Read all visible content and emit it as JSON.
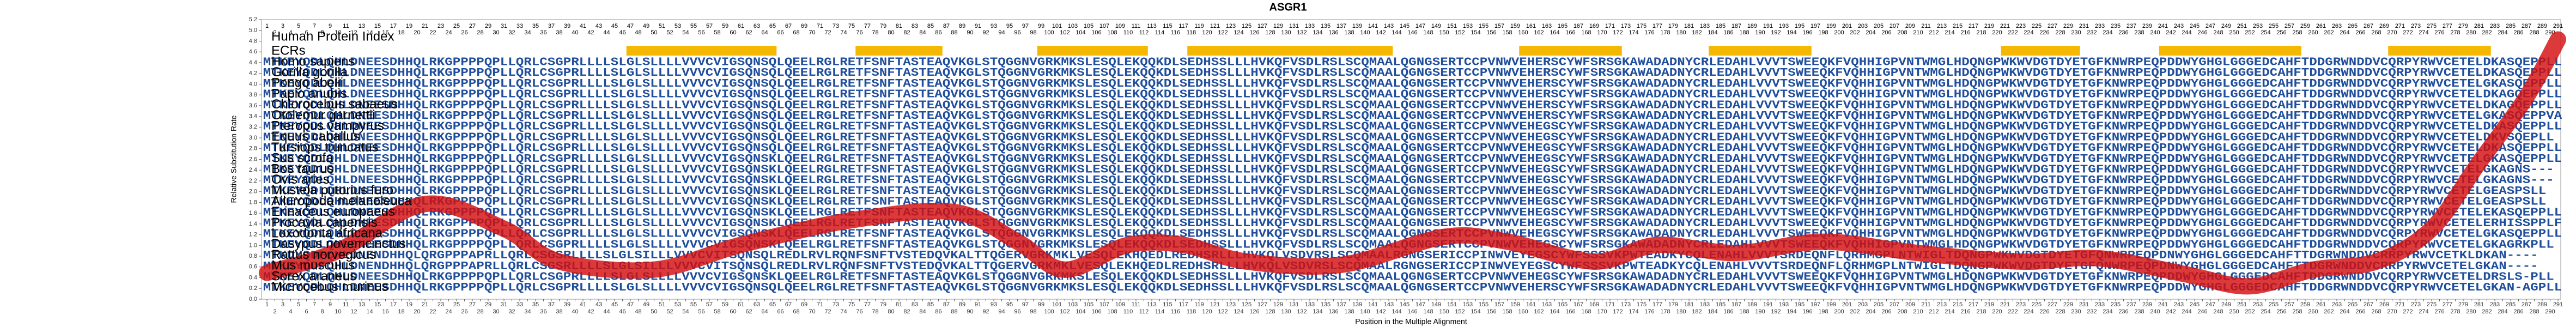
{
  "chart_data": {
    "type": "alignment-line",
    "title": "ASGR1",
    "ylabel": "Relative Substitution Rate",
    "xlabel": "Position in the Multiple Alignment",
    "index_label": "Human Protein Index",
    "ecr_label": "ECRs",
    "ecr_color": "#f5b800",
    "line_color": "#d40f0f",
    "seq_color": "#1f4e9c",
    "xlim": [
      1,
      291
    ],
    "ylim": [
      0,
      5.2
    ],
    "yticks": [
      {
        "value": 0,
        "label": "0.0"
      },
      {
        "value": 0.2,
        "label": "0.2"
      },
      {
        "value": 0.4,
        "label": "0.4"
      },
      {
        "value": 0.6,
        "label": "0.6"
      },
      {
        "value": 0.8,
        "label": "0.8"
      },
      {
        "value": 1,
        "label": "1.0"
      },
      {
        "value": 1.2,
        "label": "1.2"
      },
      {
        "value": 1.4,
        "label": "1.4"
      },
      {
        "value": 1.6,
        "label": "1.6"
      },
      {
        "value": 1.8,
        "label": "1.8"
      },
      {
        "value": 2,
        "label": "2.0"
      },
      {
        "value": 2.2,
        "label": "2.2"
      },
      {
        "value": 2.4,
        "label": "2.4"
      },
      {
        "value": 2.6,
        "label": "2.6"
      },
      {
        "value": 2.8,
        "label": "2.8"
      },
      {
        "value": 3,
        "label": "3.0"
      },
      {
        "value": 3.2,
        "label": "3.2"
      },
      {
        "value": 3.4,
        "label": "3.4"
      },
      {
        "value": 3.6,
        "label": "3.6"
      },
      {
        "value": 3.8,
        "label": "3.8"
      },
      {
        "value": 4,
        "label": "4.0"
      },
      {
        "value": 4.2,
        "label": "4.2"
      },
      {
        "value": 4.4,
        "label": "4.4"
      },
      {
        "value": 4.6,
        "label": "4.6"
      },
      {
        "value": 4.8,
        "label": "4.8"
      },
      {
        "value": 5,
        "label": "5.0"
      },
      {
        "value": 5.2,
        "label": "5.2"
      }
    ],
    "xticks": [
      1,
      2,
      3,
      4,
      5,
      6,
      7,
      8,
      9,
      10,
      11,
      12,
      13,
      14,
      15,
      16,
      17,
      18,
      19,
      20,
      21,
      22,
      23,
      24,
      25,
      26,
      27,
      28,
      29,
      30,
      31,
      32,
      33,
      34,
      35,
      36,
      37,
      38,
      39,
      40,
      41,
      42,
      43,
      44,
      45,
      46,
      47,
      48,
      49,
      50,
      51,
      52,
      53,
      54,
      55,
      56,
      57,
      58,
      59,
      60,
      61,
      62,
      63,
      64,
      65,
      66,
      67,
      68,
      69,
      70,
      71,
      72,
      73,
      74,
      75,
      76,
      77,
      78,
      79,
      80,
      81,
      82,
      83,
      84,
      85,
      86,
      87,
      88,
      89,
      90,
      91,
      92,
      93,
      94,
      95,
      96,
      97,
      98,
      99,
      100,
      101,
      102,
      103,
      104,
      105,
      106,
      107,
      108,
      109,
      110,
      111,
      112,
      113,
      114,
      115,
      116,
      117,
      118,
      119,
      120,
      121,
      122,
      123,
      124,
      125,
      126,
      127,
      128,
      129,
      130,
      131,
      132,
      133,
      134,
      135,
      136,
      137,
      138,
      139,
      140,
      141,
      142,
      143,
      144,
      145,
      146,
      147,
      148,
      149,
      150,
      151,
      152,
      153,
      154,
      155,
      156,
      157,
      158,
      159,
      160,
      161,
      162,
      163,
      164,
      165,
      166,
      167,
      168,
      169,
      170,
      171,
      172,
      173,
      174,
      175,
      176,
      177,
      178,
      179,
      180,
      181,
      182,
      183,
      184,
      185,
      186,
      187,
      188,
      189,
      190,
      191,
      192,
      193,
      194,
      195,
      196,
      197,
      198,
      199,
      200,
      201,
      202,
      203,
      204,
      205,
      206,
      207,
      208,
      209,
      210,
      211,
      212,
      213,
      214,
      215,
      216,
      217,
      218,
      219,
      220,
      221,
      222,
      223,
      224,
      225,
      226,
      227,
      228,
      229,
      230,
      231,
      232,
      233,
      234,
      235,
      236,
      237,
      238,
      239,
      240,
      241,
      242,
      243,
      244,
      245,
      246,
      247,
      248,
      249,
      250,
      251,
      252,
      253,
      254,
      255,
      256,
      257,
      258,
      259,
      260,
      261,
      262,
      263,
      264,
      265,
      266,
      267,
      268,
      269,
      270,
      271,
      272,
      273,
      274,
      275,
      276,
      277,
      278,
      279,
      280,
      281,
      282,
      283,
      284,
      285,
      286,
      287,
      288,
      289,
      290,
      291
    ],
    "ecrs": [
      [
        47,
        65
      ],
      [
        76,
        86
      ],
      [
        99,
        112
      ],
      [
        118,
        143
      ],
      [
        160,
        172
      ],
      [
        184,
        196
      ],
      [
        221,
        230
      ],
      [
        241,
        258
      ],
      [
        270,
        282
      ]
    ],
    "x": [
      1,
      10,
      21,
      31,
      38,
      50,
      61,
      75,
      88,
      96,
      102,
      110,
      117,
      125,
      137,
      150,
      158,
      169,
      177,
      187,
      198,
      210,
      223,
      233,
      244,
      252,
      260,
      268,
      275,
      281,
      287,
      291
    ],
    "values": [
      0.49,
      0.9,
      1.77,
      1.31,
      0.7,
      0.55,
      1.01,
      1.47,
      1.62,
      1.07,
      0.55,
      1.01,
      1.01,
      0.7,
      0.64,
      1.16,
      1.07,
      0.7,
      1.01,
      0.86,
      1.07,
      0.86,
      0.7,
      0.76,
      0.46,
      0.24,
      0.55,
      0.7,
      1.31,
      2.54,
      3.76,
      4.83
    ],
    "species": [
      {
        "name": "Homo sapiens",
        "seq": "MTKEYQDLQHLDNEESDHHQLRKGPPPPQPLLQRLCSGPRLLLLSLGLSLLLLVVVCVIGSQNSQLQEELRGLRETFSNFTASTEAQVKGLSTQGGNVGRKMKSLESQLEKQQKDLSEDHSSLLLHVKQFVSDLRSLSCQMAALQGNGSERTCCPVNWVEHERSCYWFSRSGKAWADADNYCRLEDAHLVVVTSWEEQKFVQHHIGPVNTWMGLHDQNGPWKWVDGTDYETGFKNWRPEQPDDWYGHGLGGGEDCAHFTDDGRWNDDVCQRPYRWVCETELDKASQEPPLL"
      },
      {
        "name": "Gorilla gorilla",
        "seq": "MTKEYQDLQHLDNEESDHHQLRKGPPPPQPLLQRLCSGPRLLLLSLGLSLLLLVVVCVIGSQNSQLQEELRGLRETFSNFTASTEAQVKGLSTQGGNVGRKMKSLESQLEKQQKDLSEDHSSLLLHVKQFVSDLRSLSCQMAALQGNGSERTCCPVNWVEHERSCYWFSRSGKAWADADNYCRLEDAHLVVVTSWEEQKFVQHHIGPVNTWMGLHDQNGPWKWVDGTDYETGFKNWRPEQPDDWYGHGLGGGEDCAHFTDDGRWNDDVCQRPYRWVCETELDKASQEPPLL"
      },
      {
        "name": "Pongo abelii",
        "seq": "MTKEYQDLQHLDNEESDHHQLRKGPPPPQPLLQRLCSGPRLLLLSLGLSLLLLVVVCVIGSQNSQLQEELRGLRETFSNFTASTEAQVKGLSTQGGNVGRKMKSLESQLEKQQKDLSEDHSSLLLHVKQFVSDLRSLSCQMAALQGNGSERTCCPVNWVEHERSCYWFSRSGKAWADADNYCRLEDAHLVVVTSWEEQKFVQHHIGPVNTWMGLHDQNGPWKWVDGTDYETGFKNWRPEQPDDWYGHGLGGGEDCAHFTDDGRWNDDVCQRPYRWVCETELGKASQEPPLL"
      },
      {
        "name": "Papio anubis",
        "seq": "MTKEYQDLQHLDNEESDHHQLRKGPPPPQPLLQRLCSGPRLLLLSLGLSLLLLVVVCVIGSQNSQLQEELRGLRETFSNFTASTEAQVKGLSTQGGNVGRKMKSLESQLEKQQKDLSEDHSSLLLHVKQFVSDLRSLSCQMAALQGNGSERTCCPVNWVEHERSCYWFSRSGKAWADADNYCRLEDAHLVVVTSWEEQKFVQHHIGPVNTWMGLHDQNGPWKWVDGTDYETGFKNWRPEQPDDWYGHGLGGGEDCAHFTDDGRWNDDVCQRPYRWVCETELDKAGQEPPLL"
      },
      {
        "name": "Chlorocebus sabaeus",
        "seq": "MTKEYQDLQHLDNEESDHHQLRKGPPPPQPLLQRLCSGPRLLLLSLGLSLLLLVVVCVIGSQNSQLQEELRGLRETFSNFTASTEAQVKGLSTQGGNVGRKMKSLESQLEKQQKDLSEDHSSLLLHVKQFVSDLRSLSCQMAALQGNGSERTCCPVNWVEHERSCYWFSRSGKAWADADNYCRLEDAHLVVVTSWEEQKFVQHHIGPVNTWMGLHDQNGPWKWVDGTDYETGFKNWRPEQPDDWYGHGLGGGEDCAHFTDDGRWNDDVCQRPYRWVCETELDKAGQEPPLL"
      },
      {
        "name": "Otolemur garnettii",
        "seq": "MTKEYQDLQHLDNEESDHHQLRKGPPPPQPLLQRLCSGPRLLLLSLGLSLLLLVVVCVIGSQNSQLQEELRGLRETFSNFTASTEAQVKGLSTQGGNVGRKMKSLESQLEKQQKDLSEDHSSLLLHVKQFVSDLRSLSCQMAALQGNGSERTCCPVNWVEHERSCYWFSRSGKAWADADNYCRLEDAHLVVVTSWEEQKFVQHHIGPVNTWMGLHDQNGPWKWVDGTDYETGFKNWRPEQPDDWYGHGLGGGEDCAHFTDDGRWNDDVCQRPYRWVCETELGKASQEPPVA"
      },
      {
        "name": "Pteropus vampyrus",
        "seq": "MTKEYQDLQHLDNEESDHHQLRKGPPPPQPLLQRLCSGPRLLLLSLGLSLLLLVVVCVIGSQNSQLQEELRGLRETFSNFTASTEAQVKGLSTQGGNVGRKMKSLESQLEKQQKDLSEDHSSLLLHVKQFVSDLRSLSCQMAALQGNGSERTCCPVNWVEHEGSCYWFSRSGKAWADADNYCRLEDAHLVVVTSWEEQKFVQHHIGPVNTWMGLHDQNGPWKWVDGTDYETGFKNWRPEQPDDWYGHGLGGGEDCAHFTDDGRWNDDVCQRPYRWVCETELDKASQEPPLL"
      },
      {
        "name": "Equus caballus",
        "seq": "MTKEYQDLQHLDNEESDHHQLRKGPPPPQPLLQRLCSGPRLLLLSLGLSLLLLVVVCVIGSQNSQLQEELRGLRETFSNFTASTEAQVKGLSTQGGNVGRKMKSLESQLEKQQKDLSEDHSSLLLHVKQFVSDLRSLSCQMAALQGNGSERTCCPVNWVEHEGSCYWFSRSGKAWADADNYCRLEDAHLVVVTSWEEQKFVQHHIGPVNTWMGLHDQNGPWKWVDGTDYETGFKNWRPEQPDDWYGHGLGGGEDCAHFTDDGRWNDDVCQRPYRWVCETELDKVSQEPLL"
      },
      {
        "name": "Tursiops truncatus",
        "seq": "MTKEYQDLQHLDNEESDHHQLRKGPPPPQPLLQRLCSGPRLLLLSLGLSLLLLVVVCVIGSQNSQLQEELRGLRETFSNFTASTEAQVKGLSTQGGNVGRKMKSLESQLEKQQKDLSEDHSSLLLHVKQFVSDLRSLSCQMAALQGNGSERTCCPVNWVEHEGSCYWFSRSGKAWADADNYCRLEDAHLVVVTSWEEQKFVQHHIGPVNTWMGLHDQNGPWKWVDGTDYETGFKNWRPEQPDDWYGHGLGGGEDCAHFTDDGRWNDDVCQRPYRWVCETELDKASQEPPLL"
      },
      {
        "name": "Sus scrofa",
        "seq": "MTKEYQDLQHLDNEESDHHQLRKGPPPPQPLLQRLCSGPRLLLLSLGLSLLLLVVVCVIGSQNSKLQEELRGLRETFSNFTASTEAQVKGLSTQGGNVGRKMKSLESQLEKQQKDLSEDHSSLLLHVKQFVSDLRSLSCQMAALQGNGSERTCCPVNWVEHEGSCYWFSRSGKAWADADNYCRLEDAHLVVVTSWEEQKFVQHHIGPVNTWMGLHDQNGPWKWVDGTDYETGFKNWRPEQPDDWYGHGLGGGEDCAHFTDDGRWNDDVCQRPYRWVCETELGKASQEPPLL"
      },
      {
        "name": "Bos taurus",
        "seq": "MTKEYQDLQHLDNEESDHHQLRKGPPPPQPLLQRLCSGPRLLLLSLGLSLLLLVVVCVIGSQNSKLQEELRGLRETFSNFTASTEAQVKGLSTQGGNVGRKMKSLESQLEKQQKDLSEDHSSLLLHVKQFVSDLRSLSCQMAALQGNGSERTCCPVNWVEHEGSCYWFSRSGKAWADADNYCRLEDAHLVVVTSWEEQKFVQHHIGPVNTWMGLHDQNGPWKWVDGTDYETGFKNWRPEQPDDWYGHGLGGGEDCAHFTDDGRWNDDVCQRPYRWVCETELGKAGNS---"
      },
      {
        "name": "Ovis aries",
        "seq": "MTKEYQDLQHLDNEESDHHQLRKGPPPPQPLLQRLCSGPRLLLLSLGLSLLLLVVVCVIGSQNSKLQEELRGLRETFSNFTASTEAQVKGLSTQGGNVGRKMKSLESQLEKQQKDLSEDHSSLLLHVKQFVSDLRSLSCQMAALQGNGSERTCCPVNWVEHEGSCYWFSRSGKAWADADNYCRLEDAHLVVVTSWEEQKFVQHHIGPVNTWMGLHDQNGPWKWVDGTDYETGFKNWRPEQPDDWYGHGLGGGEDCAHFTDDGRWNDDVCQRPYRWVCETELGKAGNS---"
      },
      {
        "name": "Mustela putorius furo",
        "seq": "MTKEYQDLQHLDNEESDHHQLRKGPPPPQPLLQRLCSGPRLLLLSLGLSLLLLVVVCVIGSQNSKLQEELRGLRETFSNFTASTEAQVKGLSTQGGNVGRKMKSLESQLEKQQKDLSEDHSSLLLHVKQFVSDLRSLSCQMAALQGNGSERTCCPVNWVEHEGSCYWFSRSGKAWADADNYCRLEDAHLVVVTSWEEQKFVQHHIGPVNTWMGLHDQNGPWKWVDGTDYETGFKNWRPEQPDDWYGHGLGGGEDCAHFTDDGRWNDDVCQRPYRWVCETELGEASPSLL"
      },
      {
        "name": "Ailuropoda melanoleuca",
        "seq": "MTKEYQDLQHLDNEESDHHQLRKGPPPPQPLLQRLCSGPRLLLLSLGLSLLLLVVVCVIGSQNSKLQEELRGLRETFSNFTASTEAQVKGLSTQGGNVGRKMKSLESQLEKQQKDLSEDHSSLLLHVKQFVSDLRSLSCQMAALQGNGSERTCCPVNWVEHEGSCYWFSRSGKAWADADNYCRLEDAHLVVVTSWEEQKFVQHHIGPVNTWMGLHDQNGPWKWVDGTDYETGFKNWRPEQPDDWYGHGLGGGEDCAHFTDDGRWNDDVCQRPYRWVCETELGEASPSLL"
      },
      {
        "name": "Erinaceus europaeus",
        "seq": "MTKEYQDLQHLDNEESDHHQLRKGPPPPQPLLQRLCSGPRLLLLSLGLSLLLLVVVCVIGSQNSKLQEELRGLRETFSNFTASTEAQVKGLSTQGGNVGRKMKSLESQLEKQQKDLSEDHSSLLLHVKQFVSDLRSLSCQMAALQGNGSERTCCPVNWVEHEGSCYWFSRSGKAWADADNYCRLEDAHLVVVTSWEEQKFVQHHIGPVNTWMGLHDQNGPWKWVDGTDYETGFKNWRPEQPDDWYGHGLGGGEDCAHFTDDGRWNDDVCQRPYRWVCETELEKASQEPPLL"
      },
      {
        "name": "Procavia capensis",
        "seq": "MTKEYQDLQHLDNEESDHHQLRKGPPPPQPLLQRLCSGPRLLLLSLGLSLLLLVVVCVIGSQNSKLQEELRGLRETFSNFTASTEAQVKGLSTQGGNVGRKMKSLESQLEKQQKDLSEDHSSLLLHVKQFVSDLRSLSCQMAALQGNGSERTCCPVNWVEHEGSCYWFSRSGKAWADADNYCRLEDAHLVVVTSWEEQKFVQHHIGPVNTWMGLHDQNGPWKWVDGTDYETGFKNWRPEQPDDWYGHGLGGGEDCAHFTDDGRWNDDVCQRPYRWVCETELERHISSPPLF"
      },
      {
        "name": "Loxodonta africana",
        "seq": "MTKEYQDLQHLDNEESDHHQLRKGPPPPQPLLQRLCSGPRLLLLSLGLSLLLLVVVCVIGSQNSKLQEELRGLRETFSNFTASTEAQVKGLSTQGGNVGRKMKSLESQLEKQQKDLSEDHSSLLLHVKQFVSDLRSLSCQMAALQGNGSERTCCPVNWVEHEGSCYWFSRSGKAWADADNYCRLEDAHLVVVTSWEEQKFVQHHIGPVNTWMGLHDQNGPWKWVDGTDYETGFKNWRPEQPDDWYGHGLGGGEDCAHFTDDGRWNDDVCQRPYRWVCETELGKASQEPPLL"
      },
      {
        "name": "Dasypus novemcinctus",
        "seq": "MTKEYQDLQHLDNEESDHHQLRKGPPPPQPLLQRLCSGPRLLLLSLGLSLLLLVVVCVIGSQNSKLQEELRGLRETFSNFTASTEAQVKGLSTQGGNVGRKMKSLESQLEKQQKDLSEDHSSLLLHVKQFVSDLRSLSCQMAALQGNGSERTCCPVNWVEHEGSCYWFSRSGKAWADADNYCRLEDAHLVVVTSWEEQKFVQHHIGPVNTWMGLHDQNGPWKWVDGTDYETGFKNWRPEQPDDWYGHGLGGGEDCAHFTDDGRWNDDVCQRPYRWVCETELGKAGRKPLL"
      },
      {
        "name": "Rattus norvegicus",
        "seq": "MTKDYQDFQHLDNENDHHQLQRGPPPAPRLLQRLCSGSRLLLLSLGLSILLLVVVCVITSQNSQLREDLRVLRQNFSNFTVSTEDQVKALTTQGERVGRKMKLVESQLEKHQEDLREDHSRLLLHVKQLVSDVRSLSCQMAALRGNGSERICCPINWVEYEGSCYWFSSSVKPWTEADKYCQLENAHLVVVTSRDEQNFLQRHMGPLNTWIGLTDQNGPWKWVDGTDYETGFQNWRPEQPDNWYGHGLGGGEDCAHFTTDGRWNDDVCRRPYRWVCETKLDKAN----"
      },
      {
        "name": "Mus musculus",
        "seq": "MTKDYQDFQHLDNENDHHQLQRGPPPAPRLLQRLCSGSRLLLLSLGLSILLLVVVCVITSQNSQLREDLRVLRQNFSNFTVSTEDQVKALTTQGERVGRKMKLVESQLEKHQEDLREDHSRLLLHVKQLVSDVRSLSCQMAALRGNGSERICCPINWVEYEGSCYWFSSSVKPWTEADKYCQLENAHLVVVTSRDEQNFLQRHMGPLNTWIGLTDQNGPWKWVDGTDYETGFQNWRPEQPDNWYGHGLGGGEDCAHFTTDGRWNDDVCRRPYRWVCETELGKAN----"
      },
      {
        "name": "Sorex araneus",
        "seq": "MTKEYQDLQHLDNEESDHHQLRKGPPPPQPLLQRLCSGPRLLLLSLGLSLLLLVVVCVIGSQNSKLQEELRGLRETFSNFTASTEAQVKGLSTQGGNVGRKMKSLESQLEKQQKDLSEDHSSLLLHVKQFVSDLRSLSCQMAALQGNGSERTCCPVNWVEHEGSCYWFSRSGKAWADADNYCRLEDAHLVVVTSWEEQKFVQHHIGPVNTWMGLHDQNGPWKWVDGTDYETGFKNWRPEQPDDWYGHGLGGGEDCAHFTDDGRWNDDVCQRPYRWVCETELDRSLS-PLL"
      },
      {
        "name": "Microcebus murinus",
        "seq": "MTKEYQDLQHLDNEESDHHQLRKGPPPPQPLLQRLCSGPRLLLLSLGLSLLLLVVVCVIGSQNSQLQEELRGLRETFSNFTASTEAQVKGLSTQGGNVGRKMKSLESQLEKQQKDLSEDHSSLLLHVKQFVSDLRSLSCQMAALQGNGSERTCCPVNWVEHERSCYWFSRSGKAWADADNYCRLEDAHLVVVTSWEEQKFVQHHIGPVNTWMGLHDQNGPWKWVDGTDYETGFKNWRPEQPDDWYGHGLGGGEDCAHFTDDGRWNDDVCQRPYRWVCETELGKAN-AGPLL"
      }
    ]
  }
}
